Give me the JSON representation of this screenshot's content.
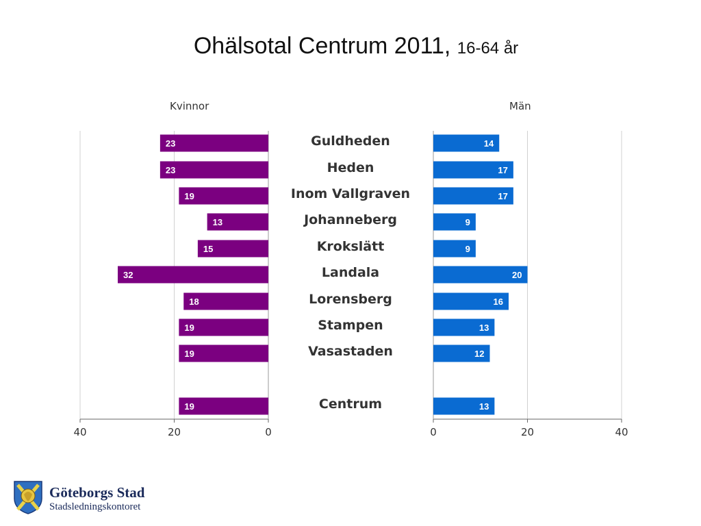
{
  "title": {
    "main": "Ohälsotal Centrum 2011,",
    "sub": "16-64 år"
  },
  "chart_data": {
    "type": "bar",
    "orientation": "horizontal-butterfly",
    "categories": [
      "Guldheden",
      "Heden",
      "Inom Vallgraven",
      "Johanneberg",
      "Krokslätt",
      "Landala",
      "Lorensberg",
      "Stampen",
      "Vasastaden",
      "Centrum"
    ],
    "series": [
      {
        "name": "Kvinnor",
        "color": "#7B0080",
        "values": [
          23,
          23,
          19,
          13,
          15,
          32,
          18,
          19,
          19,
          19
        ]
      },
      {
        "name": "Män",
        "color": "#0A6BD2",
        "values": [
          14,
          17,
          17,
          9,
          9,
          20,
          16,
          13,
          12,
          13
        ]
      }
    ],
    "xlim": [
      0,
      40
    ],
    "left_ticks": [
      "40",
      "20",
      "0"
    ],
    "right_ticks": [
      "0",
      "20",
      "40"
    ],
    "grid": true
  },
  "logo": {
    "name": "Göteborgs Stad",
    "dept": "Stadsledningskontoret"
  }
}
